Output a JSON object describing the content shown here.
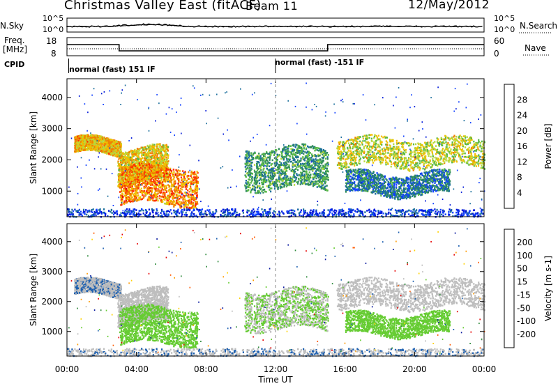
{
  "header": {
    "title": "Christmas Valley East (fitACF)",
    "beam": "Beam 11",
    "date": "12/May/2012"
  },
  "summary_panels": {
    "nsky_label": "N.Sky",
    "nsearch_label": "N.Search",
    "noise_ticks_left": [
      "10^5",
      "10^0"
    ],
    "noise_ticks_right": [
      "10^5",
      "10^0"
    ],
    "freq_label_line1": "Freq.",
    "freq_label_line2": "[MHz]",
    "freq_ticks": [
      "18",
      "8"
    ],
    "nave_label": "Nave",
    "nave_ticks": [
      "60",
      "0"
    ],
    "cpid_label": "CPID",
    "cpid_segments": [
      {
        "label": "normal (fast) 151 IF",
        "start_hour": 0.1
      },
      {
        "label": "normal (fast) -151 IF",
        "start_hour": 12.0
      }
    ]
  },
  "chart_data": [
    {
      "type": "heatmap",
      "name": "power",
      "ylabel": "Slant Range [km]",
      "xlabel": "Time UT",
      "xlim": [
        0,
        24
      ],
      "ylim": [
        180,
        4600
      ],
      "x_ticks": [
        "00:00",
        "04:00",
        "08:00",
        "12:00",
        "16:00",
        "20:00",
        "00:00"
      ],
      "y_ticks": [
        1000,
        2000,
        3000,
        4000
      ],
      "colorbar": {
        "label": "Power [dB]",
        "ticks": [
          4,
          8,
          12,
          16,
          20,
          24,
          28
        ],
        "range": [
          0,
          32
        ]
      },
      "echo_bands": [
        {
          "t": [
            0.4,
            3.1
          ],
          "range": [
            2200,
            2700
          ],
          "level": 21
        },
        {
          "t": [
            2.9,
            5.8
          ],
          "range": [
            1300,
            2400
          ],
          "level": 20
        },
        {
          "t": [
            3.0,
            7.5
          ],
          "range": [
            600,
            1800
          ],
          "level": 24
        },
        {
          "t": [
            10.2,
            15.0
          ],
          "range": [
            1100,
            2400
          ],
          "level": 12
        },
        {
          "t": [
            15.5,
            24.0
          ],
          "range": [
            1800,
            2700
          ],
          "level": 18
        },
        {
          "t": [
            16.0,
            22.0
          ],
          "range": [
            900,
            1600
          ],
          "level": 9
        },
        {
          "t": [
            0.0,
            24.0
          ],
          "range": [
            200,
            450
          ],
          "level": 4
        }
      ]
    },
    {
      "type": "heatmap",
      "name": "velocity",
      "ylabel": "Slant Range [km]",
      "xlabel": "Time UT",
      "xlim": [
        0,
        24
      ],
      "ylim": [
        180,
        4600
      ],
      "x_ticks": [
        "00:00",
        "04:00",
        "08:00",
        "12:00",
        "16:00",
        "20:00",
        "00:00"
      ],
      "y_ticks": [
        1000,
        2000,
        3000,
        4000
      ],
      "colorbar": {
        "label": "Velocity [m s-1]",
        "ticks": [
          200,
          100,
          50,
          15,
          -15,
          -50,
          -100,
          -200
        ],
        "range": [
          -250,
          250
        ]
      }
    }
  ],
  "colors": {
    "ground_scatter": "#bebebe",
    "power_scale": [
      "#0018d8",
      "#1040ff",
      "#1c6f9c",
      "#2e8a5a",
      "#58b848",
      "#b8d83c",
      "#f0c000",
      "#f08000",
      "#ff3000",
      "#d80000"
    ],
    "velocity_scale": [
      "#e60000",
      "#ff5a00",
      "#ff9a00",
      "#ffd200",
      "#bebebe",
      "#66cc33",
      "#2e8a3c",
      "#1c5fb0",
      "#0a1aa0"
    ]
  }
}
